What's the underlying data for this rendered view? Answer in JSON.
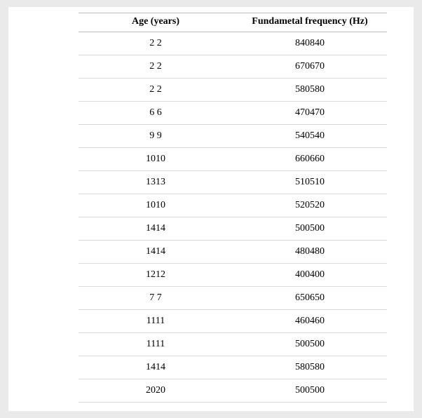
{
  "table": {
    "columns": [
      {
        "key": "age",
        "label": "Age (years)"
      },
      {
        "key": "freq",
        "label": "Fundametal frequency (Hz)"
      }
    ],
    "rows": [
      {
        "age": "2 2",
        "freq": "840840"
      },
      {
        "age": "2 2",
        "freq": "670670"
      },
      {
        "age": "2 2",
        "freq": "580580"
      },
      {
        "age": "6 6",
        "freq": "470470"
      },
      {
        "age": "9 9",
        "freq": "540540"
      },
      {
        "age": "1010",
        "freq": "660660"
      },
      {
        "age": "1313",
        "freq": "510510"
      },
      {
        "age": "1010",
        "freq": "520520"
      },
      {
        "age": "1414",
        "freq": "500500"
      },
      {
        "age": "1414",
        "freq": "480480"
      },
      {
        "age": "1212",
        "freq": "400400"
      },
      {
        "age": "7 7",
        "freq": "650650"
      },
      {
        "age": "1111",
        "freq": "460460"
      },
      {
        "age": "1111",
        "freq": "500500"
      },
      {
        "age": "1414",
        "freq": "580580"
      },
      {
        "age": "2020",
        "freq": "500500"
      }
    ],
    "row_border_color": "#d9d9d9",
    "header_border_color": "#bdbdbd",
    "background_color": "#ffffff",
    "page_background": "#eaeaea",
    "font_family": "Times New Roman",
    "font_size_pt": 11,
    "header_font_weight": "bold"
  }
}
